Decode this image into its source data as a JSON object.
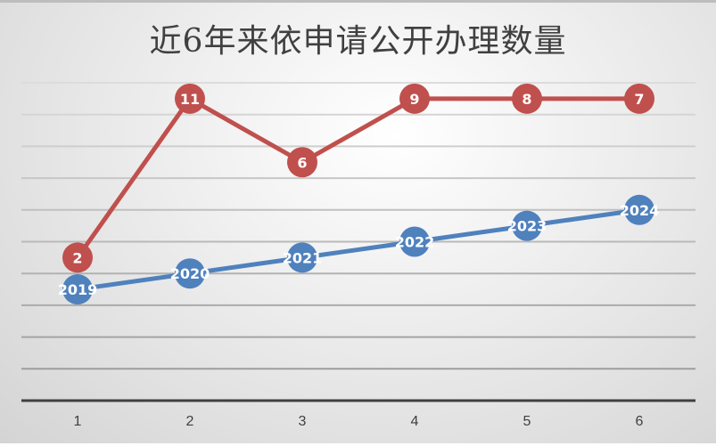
{
  "chart_data": {
    "type": "line",
    "title": "近6年来依申请公开办理数量",
    "categories": [
      "1",
      "2",
      "3",
      "4",
      "5",
      "6"
    ],
    "ylim": [
      0,
      20
    ],
    "ytick_step": 2,
    "y_axis_labels_visible": false,
    "grid": true,
    "legend": "none",
    "series": [
      {
        "values": [
          9,
          19,
          15,
          19,
          19,
          19
        ],
        "data_labels": [
          "2",
          "11",
          "6",
          "9",
          "8",
          "7"
        ],
        "color": "#c0504d"
      },
      {
        "values": [
          7,
          8,
          9,
          10,
          11,
          12
        ],
        "data_labels": [
          "2019",
          "2020",
          "2021",
          "2022",
          "2023",
          "2024"
        ],
        "color": "#4f81bd"
      }
    ]
  }
}
